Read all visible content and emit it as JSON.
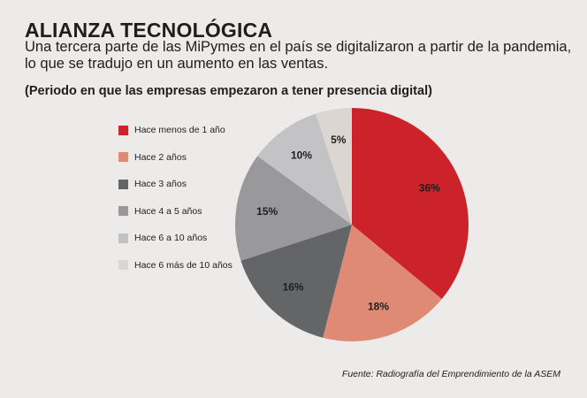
{
  "header": {
    "title": "ALIANZA TECNOLÓGICA",
    "subtitle": "Una tercera parte de las MiPymes en el país se digitalizaron a partir de la pandemia, lo que se tradujo en un aumento en las ventas.",
    "period": "(Periodo en que las empresas empezaron a tener presencia digital)"
  },
  "source": "Fuente: Radiografía del Emprendimiento de la ASEM",
  "chart_data": {
    "type": "pie",
    "slices": [
      {
        "label": "Hace menos de 1 año",
        "value": 36,
        "text": "36%",
        "color": "#cc2229"
      },
      {
        "label": "Hace 2 años",
        "value": 18,
        "text": "18%",
        "color": "#df8a75"
      },
      {
        "label": "Hace 3 años",
        "value": 16,
        "text": "16%",
        "color": "#646567"
      },
      {
        "label": "Hace 4 a 5 años",
        "value": 15,
        "text": "15%",
        "color": "#99999b"
      },
      {
        "label": "Hace 6 a 10 años",
        "value": 10,
        "text": "10%",
        "color": "#c3c3c5"
      },
      {
        "label": "Hace 6 más de 10 años",
        "value": 5,
        "text": "5%",
        "color": "#dcd6d2"
      }
    ],
    "start_angle": "12 o'clock",
    "direction": "clockwise",
    "legend_position": "left"
  }
}
